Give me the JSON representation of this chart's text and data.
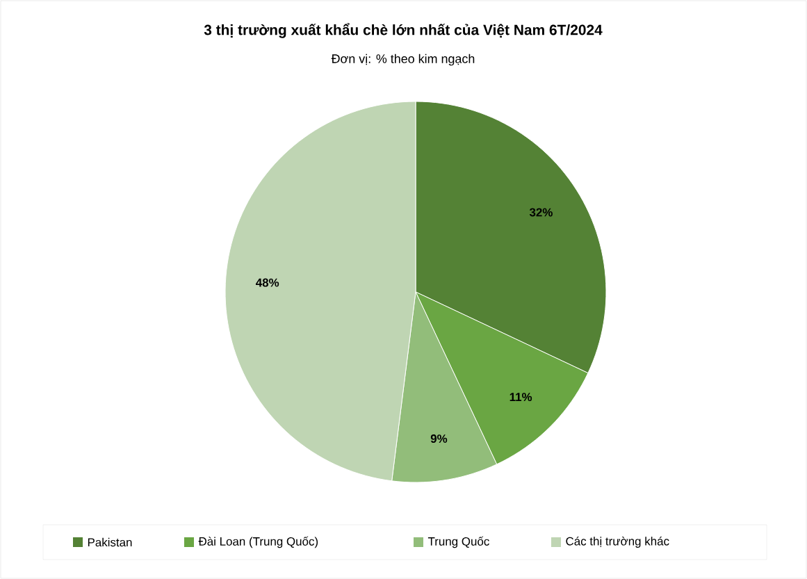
{
  "chart_data": {
    "type": "pie",
    "title": "3 thị trường xuất khẩu chè lớn nhất của Việt Nam 6T/2024",
    "subtitle": "Đơn vị: % theo kim ngạch",
    "categories": [
      "Pakistan",
      "Đài Loan (Trung Quốc)",
      "Trung Quốc",
      "Các thị trường khác"
    ],
    "values": [
      32,
      11,
      9,
      48
    ],
    "colors": [
      "#548235",
      "#6aa643",
      "#92bd7a",
      "#bfd5b3"
    ],
    "value_labels": [
      "32%",
      "11%",
      "9%",
      "48%"
    ],
    "legend": "bottom"
  }
}
